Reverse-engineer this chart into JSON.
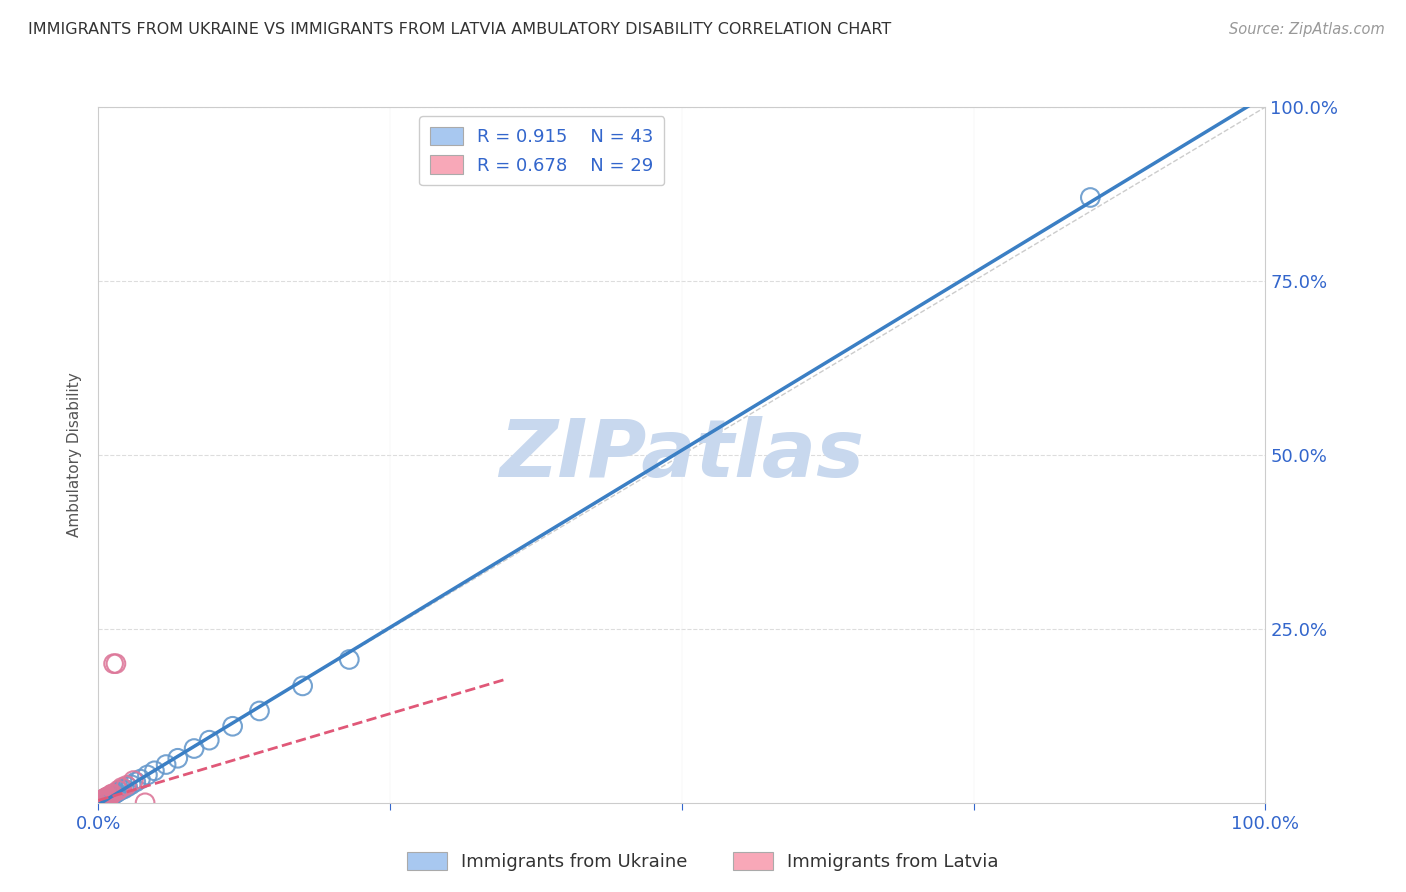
{
  "title": "IMMIGRANTS FROM UKRAINE VS IMMIGRANTS FROM LATVIA AMBULATORY DISABILITY CORRELATION CHART",
  "source": "Source: ZipAtlas.com",
  "ylabel": "Ambulatory Disability",
  "legend_ukraine": "Immigrants from Ukraine",
  "legend_latvia": "Immigrants from Latvia",
  "ukraine_R": 0.915,
  "ukraine_N": 43,
  "latvia_R": 0.678,
  "latvia_N": 29,
  "ukraine_color": "#A8C8F0",
  "ukraine_edge_color": "#6699CC",
  "ukraine_line_color": "#3B7FC4",
  "latvia_color": "#F8A8B8",
  "latvia_edge_color": "#DD7799",
  "latvia_line_color": "#E05878",
  "diagonal_color": "#CCCCCC",
  "grid_color": "#DDDDDD",
  "background_color": "#FFFFFF",
  "watermark": "ZIPatlas",
  "watermark_color": "#C8D8EE",
  "ukraine_x": [
    0.002,
    0.003,
    0.003,
    0.004,
    0.004,
    0.004,
    0.005,
    0.005,
    0.005,
    0.006,
    0.006,
    0.007,
    0.007,
    0.008,
    0.008,
    0.009,
    0.009,
    0.01,
    0.01,
    0.011,
    0.012,
    0.013,
    0.014,
    0.015,
    0.016,
    0.018,
    0.02,
    0.022,
    0.025,
    0.028,
    0.032,
    0.036,
    0.042,
    0.048,
    0.058,
    0.068,
    0.082,
    0.095,
    0.115,
    0.138,
    0.175,
    0.215,
    0.85
  ],
  "ukraine_y": [
    0.001,
    0.002,
    0.003,
    0.002,
    0.003,
    0.004,
    0.003,
    0.004,
    0.005,
    0.004,
    0.005,
    0.006,
    0.007,
    0.006,
    0.007,
    0.007,
    0.008,
    0.008,
    0.009,
    0.01,
    0.011,
    0.012,
    0.013,
    0.014,
    0.015,
    0.017,
    0.019,
    0.02,
    0.023,
    0.026,
    0.03,
    0.034,
    0.04,
    0.046,
    0.055,
    0.064,
    0.078,
    0.09,
    0.11,
    0.132,
    0.168,
    0.206,
    0.87
  ],
  "latvia_x": [
    0.001,
    0.001,
    0.002,
    0.002,
    0.003,
    0.003,
    0.003,
    0.004,
    0.004,
    0.005,
    0.005,
    0.005,
    0.006,
    0.006,
    0.007,
    0.007,
    0.008,
    0.008,
    0.009,
    0.01,
    0.011,
    0.012,
    0.013,
    0.015,
    0.017,
    0.02,
    0.024,
    0.03,
    0.04
  ],
  "latvia_y": [
    0.001,
    0.002,
    0.001,
    0.003,
    0.002,
    0.003,
    0.004,
    0.003,
    0.005,
    0.004,
    0.005,
    0.006,
    0.005,
    0.007,
    0.006,
    0.008,
    0.007,
    0.009,
    0.008,
    0.01,
    0.012,
    0.013,
    0.2,
    0.2,
    0.018,
    0.022,
    0.025,
    0.032,
    0.0
  ],
  "xlim": [
    0.0,
    1.0
  ],
  "ylim": [
    0.0,
    1.0
  ]
}
